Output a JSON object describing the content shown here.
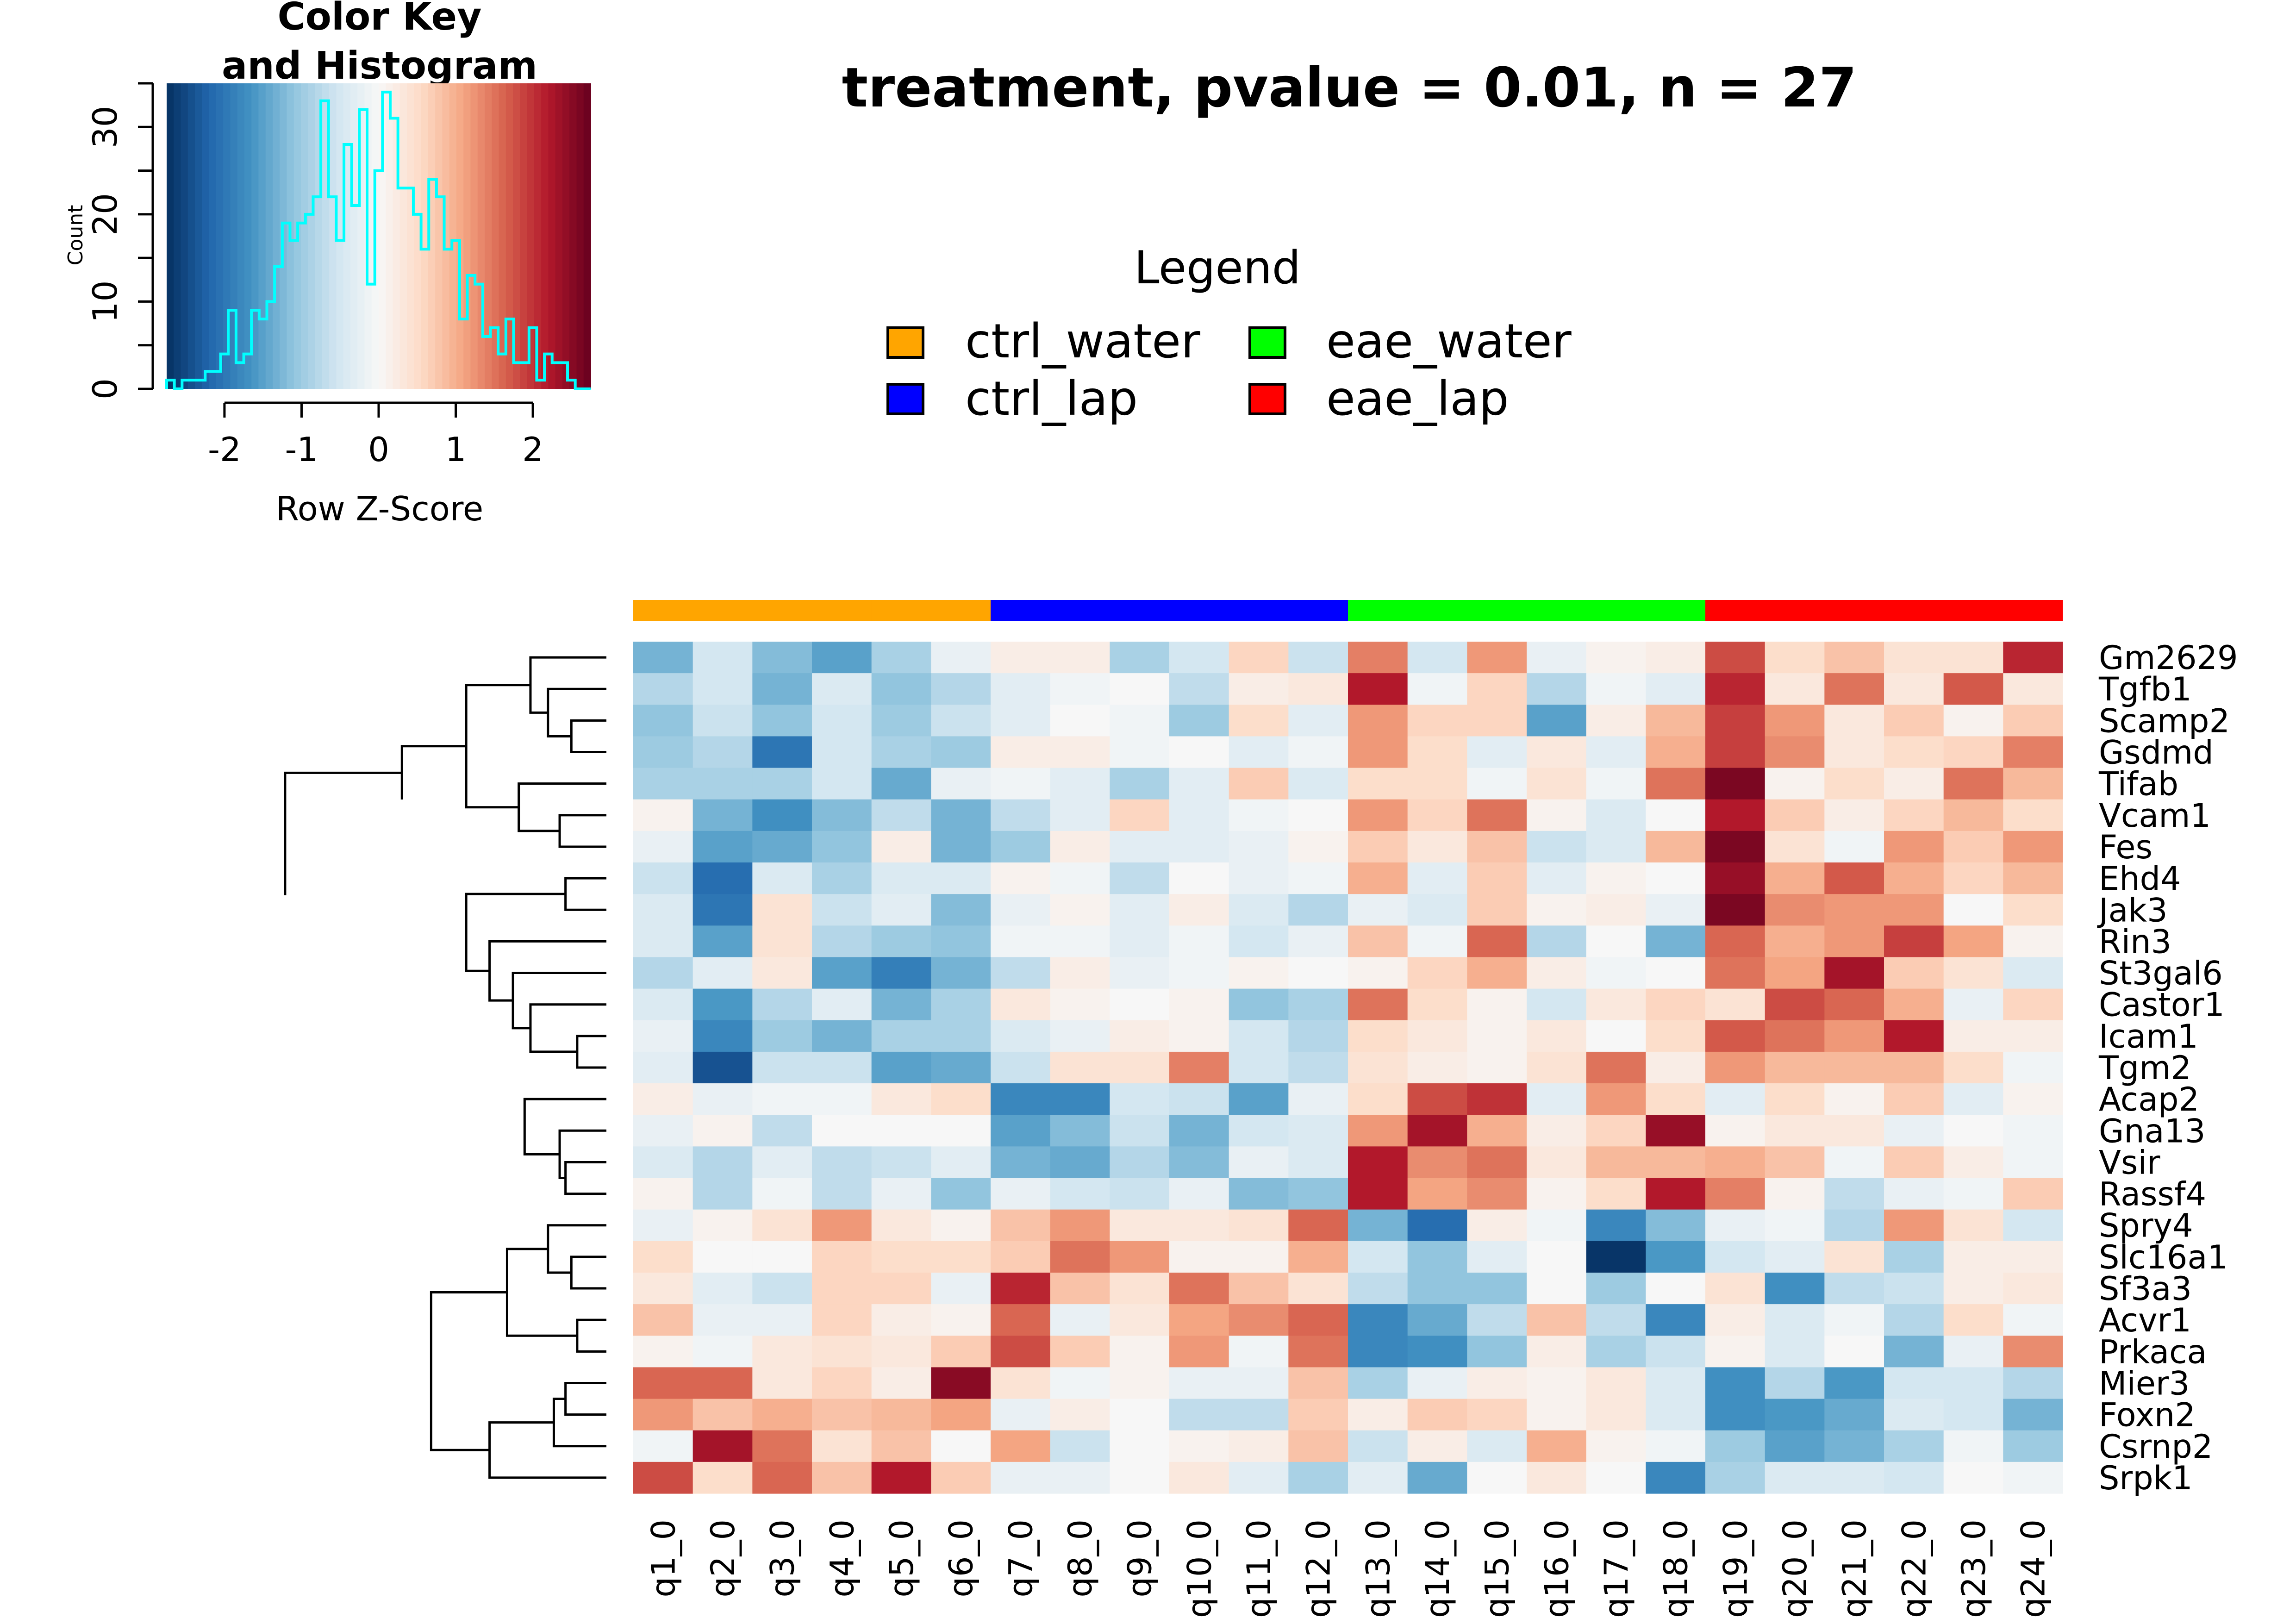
{
  "main_title": "treatment, pvalue = 0.01, n = 27",
  "color_key": {
    "title_line1": "Color Key",
    "title_line2": "and Histogram",
    "xlabel": "Row Z-Score",
    "ylabel": "Count",
    "xlim": [
      -2.75,
      2.75
    ],
    "ylim": [
      0,
      35
    ],
    "xticks": [
      "-2",
      "-1",
      "0",
      "1",
      "2"
    ],
    "xtick_values": [
      -2,
      -1,
      0,
      1,
      2
    ],
    "yticks": [
      "0",
      "10",
      "20",
      "30"
    ],
    "ytick_values": [
      0,
      10,
      20,
      30
    ],
    "histogram": {
      "bin_edges": [
        -2.75,
        -2.65,
        -2.55,
        -2.45,
        -2.35,
        -2.25,
        -2.15,
        -2.05,
        -1.95,
        -1.85,
        -1.75,
        -1.65,
        -1.55,
        -1.45,
        -1.35,
        -1.25,
        -1.15,
        -1.05,
        -0.95,
        -0.85,
        -0.75,
        -0.65,
        -0.55,
        -0.45,
        -0.35,
        -0.25,
        -0.15,
        -0.05,
        0.05,
        0.15,
        0.25,
        0.35,
        0.45,
        0.55,
        0.65,
        0.75,
        0.85,
        0.95,
        1.05,
        1.15,
        1.25,
        1.35,
        1.45,
        1.55,
        1.65,
        1.75,
        1.85,
        1.95,
        2.05,
        2.15,
        2.25,
        2.35,
        2.45,
        2.55,
        2.65,
        2.75
      ],
      "counts": [
        1,
        0,
        1,
        1,
        1,
        2,
        2,
        4,
        9,
        3,
        4,
        9,
        8,
        10,
        14,
        19,
        17,
        19,
        20,
        22,
        33,
        22,
        17,
        28,
        21,
        32,
        12,
        25,
        34,
        31,
        23,
        23,
        20,
        16,
        24,
        22,
        16,
        17,
        8,
        13,
        12,
        6,
        7,
        4,
        8,
        3,
        3,
        7,
        1,
        4,
        3,
        3,
        1,
        0,
        0
      ]
    }
  },
  "legend": {
    "title": "Legend",
    "items": [
      {
        "label": "ctrl_water",
        "color": "#FFA500"
      },
      {
        "label": "eae_water",
        "color": "#00FF00"
      },
      {
        "label": "ctrl_lap",
        "color": "#0000FF"
      },
      {
        "label": "eae_lap",
        "color": "#FF0000"
      }
    ]
  },
  "chart_data": {
    "type": "heatmap",
    "columns": [
      "q1_0",
      "q2_0",
      "q3_0",
      "q4_0",
      "q5_0",
      "q6_0",
      "q7_0",
      "q8_0",
      "q9_0",
      "q10_0",
      "q11_0",
      "q12_0",
      "q13_0",
      "q14_0",
      "q15_0",
      "q16_0",
      "q17_0",
      "q18_0",
      "q19_0",
      "q20_0",
      "q21_0",
      "q22_0",
      "q23_0",
      "q24_0"
    ],
    "column_groups": [
      "ctrl_water",
      "ctrl_water",
      "ctrl_water",
      "ctrl_water",
      "ctrl_water",
      "ctrl_water",
      "ctrl_lap",
      "ctrl_lap",
      "ctrl_lap",
      "ctrl_lap",
      "ctrl_lap",
      "ctrl_lap",
      "eae_water",
      "eae_water",
      "eae_water",
      "eae_water",
      "eae_water",
      "eae_water",
      "eae_lap",
      "eae_lap",
      "eae_lap",
      "eae_lap",
      "eae_lap",
      "eae_lap"
    ],
    "rows": [
      "Gm2629",
      "Tgfb1",
      "Scamp2",
      "Gsdmd",
      "Tifab",
      "Vcam1",
      "Fes",
      "Ehd4",
      "Jak3",
      "Rin3",
      "St3gal6",
      "Castor1",
      "Icam1",
      "Tgm2",
      "Acap2",
      "Gna13",
      "Vsir",
      "Rassf4",
      "Spry4",
      "Slc16a1",
      "Sf3a3",
      "Acvr1",
      "Prkaca",
      "Mier3",
      "Foxn2",
      "Csrnp2",
      "Srpk1"
    ],
    "value_label": "Row Z-Score",
    "color_range": [
      -2.75,
      2.75
    ],
    "values": [
      [
        -1.3,
        -0.5,
        -1.2,
        -1.5,
        -0.9,
        -0.2,
        0.2,
        0.2,
        -0.9,
        -0.5,
        0.6,
        -0.6,
        1.4,
        -0.5,
        1.2,
        -0.2,
        0.1,
        0.2,
        1.8,
        0.5,
        0.8,
        0.4,
        0.4,
        2.1
      ],
      [
        -0.8,
        -0.5,
        -1.3,
        -0.4,
        -1.1,
        -0.8,
        -0.3,
        -0.1,
        0.0,
        -0.7,
        0.2,
        0.3,
        2.2,
        -0.1,
        0.6,
        -0.8,
        -0.1,
        -0.3,
        2.1,
        0.3,
        1.5,
        0.3,
        1.7,
        0.3
      ],
      [
        -1.1,
        -0.6,
        -1.1,
        -0.5,
        -1.0,
        -0.6,
        -0.3,
        0.0,
        -0.1,
        -1.0,
        0.5,
        -0.3,
        1.2,
        0.6,
        0.6,
        -1.5,
        0.2,
        0.9,
        1.9,
        1.2,
        0.3,
        0.7,
        0.1,
        0.7
      ],
      [
        -1.0,
        -0.8,
        -2.0,
        -0.5,
        -0.9,
        -1.0,
        0.2,
        0.2,
        -0.1,
        0.0,
        -0.3,
        -0.1,
        1.2,
        0.5,
        -0.3,
        0.3,
        -0.3,
        1.0,
        1.9,
        1.3,
        0.3,
        0.5,
        0.6,
        1.4
      ],
      [
        -0.9,
        -0.9,
        -0.9,
        -0.5,
        -1.4,
        -0.2,
        -0.1,
        -0.3,
        -0.9,
        -0.3,
        0.7,
        -0.4,
        0.5,
        0.5,
        -0.1,
        0.4,
        -0.1,
        1.5,
        2.6,
        0.1,
        0.5,
        0.2,
        1.5,
        0.9
      ],
      [
        0.1,
        -1.3,
        -1.7,
        -1.2,
        -0.7,
        -1.3,
        -0.7,
        -0.3,
        0.6,
        -0.3,
        -0.1,
        0.0,
        1.2,
        0.6,
        1.5,
        0.1,
        -0.4,
        0.0,
        2.2,
        0.7,
        0.2,
        0.6,
        0.9,
        0.5
      ],
      [
        -0.2,
        -1.5,
        -1.4,
        -1.1,
        0.2,
        -1.3,
        -1.0,
        0.2,
        -0.3,
        -0.3,
        -0.2,
        0.1,
        0.7,
        0.3,
        0.8,
        -0.6,
        -0.4,
        0.9,
        2.6,
        0.4,
        -0.1,
        1.2,
        0.7,
        1.2
      ],
      [
        -0.6,
        -2.1,
        -0.4,
        -0.9,
        -0.4,
        -0.4,
        0.1,
        -0.1,
        -0.7,
        0.0,
        -0.2,
        -0.1,
        1.0,
        -0.3,
        0.7,
        -0.3,
        0.1,
        0.0,
        2.4,
        1.0,
        1.7,
        1.0,
        0.6,
        0.9
      ],
      [
        -0.4,
        -2.0,
        0.4,
        -0.6,
        -0.3,
        -1.2,
        -0.2,
        0.1,
        -0.3,
        0.2,
        -0.4,
        -0.8,
        -0.2,
        -0.4,
        0.7,
        0.1,
        0.2,
        -0.2,
        2.6,
        1.3,
        1.2,
        1.2,
        0.0,
        0.5
      ],
      [
        -0.4,
        -1.5,
        0.4,
        -0.8,
        -1.0,
        -1.1,
        -0.1,
        -0.1,
        -0.3,
        -0.1,
        -0.5,
        -0.2,
        0.8,
        -0.1,
        1.6,
        -0.8,
        0.0,
        -1.3,
        1.6,
        1.0,
        1.2,
        1.9,
        1.1,
        0.1
      ],
      [
        -0.8,
        -0.3,
        0.3,
        -1.5,
        -1.9,
        -1.3,
        -0.7,
        0.2,
        -0.2,
        -0.1,
        0.1,
        0.0,
        0.1,
        0.6,
        1.0,
        0.2,
        -0.1,
        0.0,
        1.5,
        1.1,
        2.3,
        0.7,
        0.4,
        -0.4
      ],
      [
        -0.4,
        -1.6,
        -0.8,
        -0.3,
        -1.3,
        -0.9,
        0.3,
        0.1,
        0.0,
        0.1,
        -1.1,
        -0.9,
        1.5,
        0.5,
        0.1,
        -0.5,
        0.3,
        0.6,
        0.4,
        1.8,
        1.6,
        1.0,
        -0.2,
        0.6
      ],
      [
        -0.2,
        -1.8,
        -1.0,
        -1.3,
        -0.9,
        -0.9,
        -0.4,
        -0.2,
        0.2,
        0.1,
        -0.5,
        -0.8,
        0.5,
        0.3,
        0.1,
        0.3,
        0.0,
        0.5,
        1.7,
        1.5,
        1.2,
        2.2,
        0.2,
        0.2
      ],
      [
        -0.3,
        -2.4,
        -0.6,
        -0.6,
        -1.5,
        -1.4,
        -0.6,
        0.4,
        0.4,
        1.4,
        -0.5,
        -0.7,
        0.4,
        0.2,
        0.1,
        0.4,
        1.5,
        0.2,
        1.2,
        0.9,
        0.9,
        0.9,
        0.5,
        -0.1
      ],
      [
        0.2,
        -0.2,
        -0.1,
        -0.1,
        0.3,
        0.5,
        -1.8,
        -1.8,
        -0.5,
        -0.6,
        -1.5,
        -0.2,
        0.5,
        1.8,
        2.0,
        -0.3,
        1.2,
        0.5,
        -0.3,
        0.5,
        0.1,
        0.7,
        -0.3,
        0.1
      ],
      [
        -0.2,
        0.1,
        -0.7,
        0.0,
        0.0,
        0.0,
        -1.5,
        -1.2,
        -0.6,
        -1.3,
        -0.5,
        -0.4,
        1.2,
        2.3,
        1.0,
        0.2,
        0.6,
        2.4,
        0.1,
        0.3,
        0.3,
        -0.2,
        0.0,
        -0.1
      ],
      [
        -0.4,
        -0.8,
        -0.3,
        -0.7,
        -0.6,
        -0.3,
        -1.3,
        -1.4,
        -0.8,
        -1.2,
        -0.2,
        -0.4,
        2.2,
        1.3,
        1.5,
        0.3,
        0.9,
        0.9,
        1.0,
        0.8,
        -0.1,
        0.7,
        0.2,
        -0.1
      ],
      [
        0.1,
        -0.8,
        -0.1,
        -0.7,
        -0.2,
        -1.1,
        -0.2,
        -0.5,
        -0.6,
        -0.2,
        -1.2,
        -1.1,
        2.2,
        1.1,
        1.3,
        0.1,
        0.5,
        2.2,
        1.4,
        0.1,
        -0.7,
        -0.2,
        -0.1,
        0.7
      ],
      [
        -0.2,
        0.1,
        0.4,
        1.2,
        0.3,
        0.1,
        0.8,
        1.2,
        0.3,
        0.3,
        0.4,
        1.6,
        -1.3,
        -2.1,
        0.2,
        -0.1,
        -1.8,
        -1.2,
        -0.2,
        -0.1,
        -0.8,
        1.2,
        0.4,
        -0.5
      ],
      [
        0.5,
        0.0,
        0.0,
        0.6,
        0.5,
        0.5,
        0.7,
        1.5,
        1.2,
        0.1,
        0.1,
        1.0,
        -0.5,
        -1.1,
        -0.3,
        0.0,
        -2.7,
        -1.6,
        -0.5,
        -0.3,
        0.4,
        -0.9,
        0.2,
        0.2
      ],
      [
        0.3,
        -0.3,
        -0.6,
        0.6,
        0.6,
        -0.2,
        2.1,
        0.8,
        0.4,
        1.5,
        0.8,
        0.4,
        -0.7,
        -1.1,
        -1.1,
        0.0,
        -1.0,
        0.0,
        0.4,
        -1.7,
        -0.7,
        -0.6,
        0.2,
        0.3
      ],
      [
        0.8,
        -0.2,
        -0.2,
        0.6,
        0.2,
        0.1,
        1.6,
        -0.2,
        0.3,
        1.1,
        1.3,
        1.6,
        -1.8,
        -1.4,
        -0.7,
        0.8,
        -0.7,
        -1.8,
        0.2,
        -0.4,
        -0.1,
        -0.8,
        0.5,
        -0.1
      ],
      [
        0.1,
        -0.1,
        0.3,
        0.4,
        0.3,
        0.7,
        1.8,
        0.7,
        0.1,
        1.2,
        -0.1,
        1.5,
        -1.8,
        -1.7,
        -1.1,
        0.2,
        -0.9,
        -0.6,
        0.1,
        -0.4,
        0.0,
        -1.3,
        -0.2,
        1.3
      ],
      [
        1.6,
        1.6,
        0.3,
        0.6,
        0.2,
        2.5,
        0.4,
        -0.1,
        0.1,
        -0.2,
        -0.2,
        0.8,
        -0.9,
        -0.2,
        0.2,
        0.1,
        0.3,
        -0.4,
        -1.7,
        -0.8,
        -1.6,
        -0.5,
        -0.5,
        -0.8
      ],
      [
        1.2,
        0.8,
        1.0,
        0.8,
        0.9,
        1.1,
        -0.2,
        0.2,
        0.0,
        -0.7,
        -0.7,
        0.7,
        0.2,
        0.7,
        0.6,
        0.1,
        0.3,
        -0.4,
        -1.7,
        -1.6,
        -1.4,
        -0.4,
        -0.5,
        -1.3
      ],
      [
        -0.1,
        2.3,
        1.5,
        0.4,
        0.8,
        0.0,
        1.1,
        -0.6,
        0.0,
        0.1,
        0.2,
        0.8,
        -0.6,
        0.2,
        -0.4,
        1.0,
        0.1,
        -0.1,
        -1.0,
        -1.5,
        -1.3,
        -0.9,
        -0.1,
        -1.0
      ],
      [
        1.8,
        0.5,
        1.6,
        0.8,
        2.2,
        0.7,
        -0.2,
        -0.2,
        0.0,
        0.3,
        -0.3,
        -0.9,
        -0.3,
        -1.4,
        0.0,
        0.3,
        0.0,
        -1.8,
        -0.9,
        -0.4,
        -0.4,
        -0.5,
        0.0,
        -0.1
      ]
    ]
  }
}
